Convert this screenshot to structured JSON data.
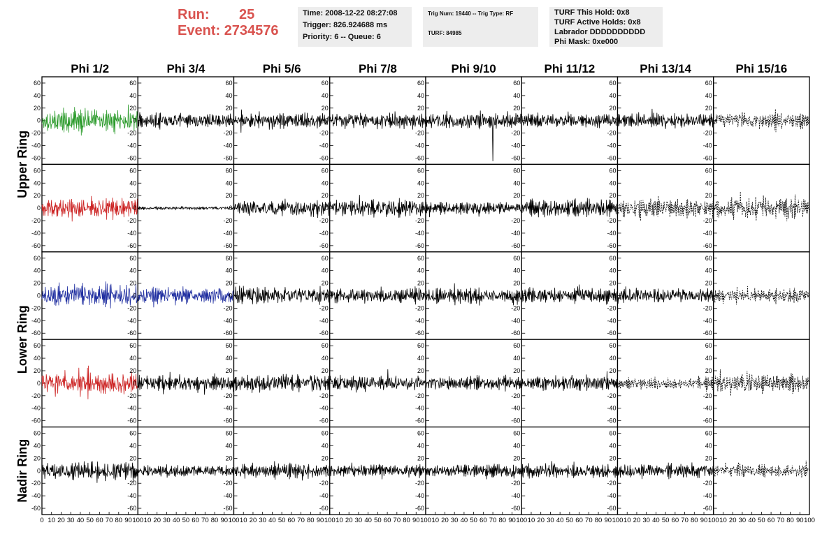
{
  "header": {
    "run_label": "Run:",
    "run_value": "25",
    "event_label": "Event:",
    "event_value": "2734576",
    "time_line": "Time: 2008-12-22 08:27:08",
    "trigger_line": "Trigger: 826.924688 ms",
    "priority_line": "Priority: 6 -- Queue: 6",
    "trig_num_line": "Trig Num: 19440 -- Trig Type: RF",
    "turf_line": "TURF: 84985",
    "turf_hold_line": "TURF This Hold: 0x8",
    "turf_active_line": "TURF Active Holds: 0x8",
    "labrador_line": "Labrador DDDDDDDDDD",
    "phi_mask_line": "Phi Mask: 0xe000",
    "accent_color": "#d9534f"
  },
  "chart_data": {
    "type": "line",
    "columns": [
      "Phi 1/2",
      "Phi 3/4",
      "Phi 5/6",
      "Phi 7/8",
      "Phi 9/10",
      "Phi 11/12",
      "Phi 13/14",
      "Phi 15/16"
    ],
    "ring_labels": [
      "Upper Ring",
      "Lower Ring",
      "Nadir Ring"
    ],
    "ring_row_spans": [
      [
        0,
        1
      ],
      [
        2,
        3
      ],
      [
        4,
        4
      ]
    ],
    "rows": 5,
    "y_ticks": [
      "60",
      "40",
      "20",
      "0",
      "-20",
      "-40",
      "-60"
    ],
    "ylim": [
      -70,
      70
    ],
    "x_ticks": [
      "0",
      "10",
      "20",
      "30",
      "40",
      "50",
      "60",
      "70",
      "80",
      "90",
      "100"
    ],
    "xlim": [
      0,
      100
    ],
    "colors": {
      "default": "#000000",
      "green": "#2a9a2a",
      "red": "#cc2222",
      "blue": "#1f2ea0"
    },
    "panels": [
      {
        "row": 0,
        "col": 0,
        "color": "green",
        "amp": 25,
        "style": "solid"
      },
      {
        "row": 0,
        "col": 1,
        "color": "default",
        "amp": 15,
        "style": "solid"
      },
      {
        "row": 0,
        "col": 2,
        "color": "default",
        "amp": 17,
        "style": "solid"
      },
      {
        "row": 0,
        "col": 3,
        "color": "default",
        "amp": 16,
        "style": "solid"
      },
      {
        "row": 0,
        "col": 4,
        "color": "default",
        "amp": 17,
        "style": "solid",
        "spike_x": 70,
        "spike_y": -65
      },
      {
        "row": 0,
        "col": 5,
        "color": "default",
        "amp": 14,
        "style": "solid"
      },
      {
        "row": 0,
        "col": 6,
        "color": "default",
        "amp": 14,
        "style": "solid"
      },
      {
        "row": 0,
        "col": 7,
        "color": "default",
        "amp": 17,
        "style": "dashed"
      },
      {
        "row": 1,
        "col": 0,
        "color": "red",
        "amp": 22,
        "style": "solid"
      },
      {
        "row": 1,
        "col": 1,
        "color": "default",
        "amp": 3,
        "style": "solid"
      },
      {
        "row": 1,
        "col": 2,
        "color": "default",
        "amp": 18,
        "style": "solid"
      },
      {
        "row": 1,
        "col": 3,
        "color": "default",
        "amp": 17,
        "style": "solid"
      },
      {
        "row": 1,
        "col": 4,
        "color": "default",
        "amp": 13,
        "style": "solid"
      },
      {
        "row": 1,
        "col": 5,
        "color": "default",
        "amp": 17,
        "style": "solid"
      },
      {
        "row": 1,
        "col": 6,
        "color": "default",
        "amp": 20,
        "style": "dashed"
      },
      {
        "row": 1,
        "col": 7,
        "color": "default",
        "amp": 24,
        "style": "dashed"
      },
      {
        "row": 2,
        "col": 0,
        "color": "blue",
        "amp": 23,
        "style": "solid"
      },
      {
        "row": 2,
        "col": 1,
        "color": "blue",
        "amp": 20,
        "style": "solid"
      },
      {
        "row": 2,
        "col": 2,
        "color": "default",
        "amp": 18,
        "style": "solid"
      },
      {
        "row": 2,
        "col": 3,
        "color": "default",
        "amp": 16,
        "style": "solid"
      },
      {
        "row": 2,
        "col": 4,
        "color": "default",
        "amp": 15,
        "style": "solid"
      },
      {
        "row": 2,
        "col": 5,
        "color": "default",
        "amp": 16,
        "style": "solid"
      },
      {
        "row": 2,
        "col": 6,
        "color": "default",
        "amp": 15,
        "style": "solid"
      },
      {
        "row": 2,
        "col": 7,
        "color": "default",
        "amp": 14,
        "style": "dashed"
      },
      {
        "row": 3,
        "col": 0,
        "color": "red",
        "amp": 23,
        "style": "solid"
      },
      {
        "row": 3,
        "col": 1,
        "color": "default",
        "amp": 17,
        "style": "solid"
      },
      {
        "row": 3,
        "col": 2,
        "color": "default",
        "amp": 18,
        "style": "solid"
      },
      {
        "row": 3,
        "col": 3,
        "color": "default",
        "amp": 16,
        "style": "solid"
      },
      {
        "row": 3,
        "col": 4,
        "color": "default",
        "amp": 15,
        "style": "solid"
      },
      {
        "row": 3,
        "col": 5,
        "color": "default",
        "amp": 15,
        "style": "solid"
      },
      {
        "row": 3,
        "col": 6,
        "color": "default",
        "amp": 13,
        "style": "dashed"
      },
      {
        "row": 3,
        "col": 7,
        "color": "default",
        "amp": 19,
        "style": "dashed"
      },
      {
        "row": 4,
        "col": 0,
        "color": "default",
        "amp": 18,
        "style": "solid"
      },
      {
        "row": 4,
        "col": 1,
        "color": "default",
        "amp": 12,
        "style": "solid"
      },
      {
        "row": 4,
        "col": 2,
        "color": "default",
        "amp": 15,
        "style": "solid"
      },
      {
        "row": 4,
        "col": 3,
        "color": "default",
        "amp": 13,
        "style": "solid"
      },
      {
        "row": 4,
        "col": 4,
        "color": "default",
        "amp": 13,
        "style": "solid"
      },
      {
        "row": 4,
        "col": 5,
        "color": "default",
        "amp": 15,
        "style": "solid"
      },
      {
        "row": 4,
        "col": 6,
        "color": "default",
        "amp": 15,
        "style": "solid"
      },
      {
        "row": 4,
        "col": 7,
        "color": "default",
        "amp": 14,
        "style": "dashed"
      }
    ]
  }
}
